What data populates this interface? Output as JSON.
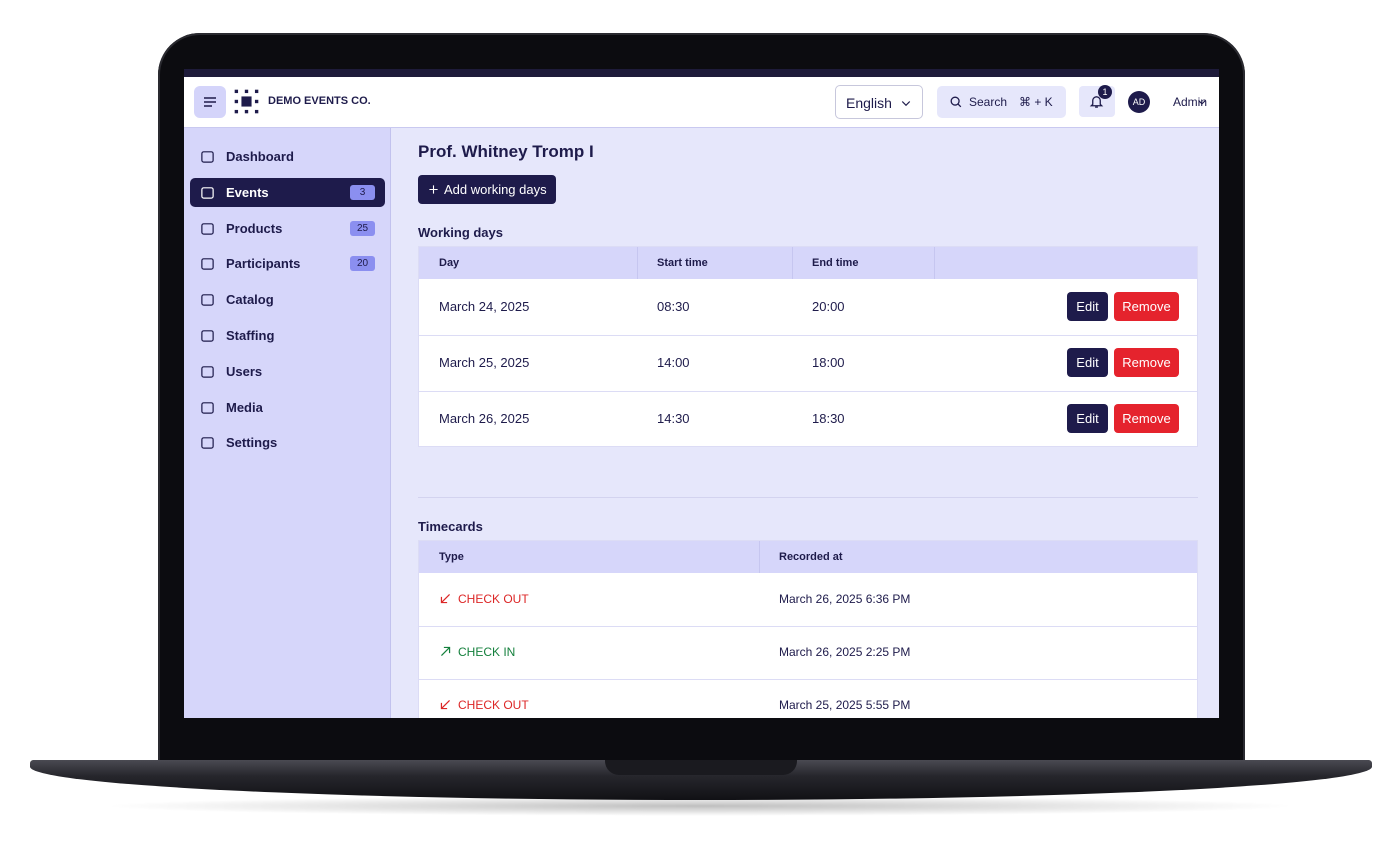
{
  "header": {
    "brand": "DEMO EVENTS CO.",
    "language": "English",
    "search": "Search",
    "shortcut": "⌘ + K",
    "notifications": "1",
    "avatar": "AD",
    "user": "Admin"
  },
  "sidebar": [
    {
      "label": "Dashboard"
    },
    {
      "label": "Events",
      "badge": "3",
      "active": true
    },
    {
      "label": "Products",
      "badge": "25"
    },
    {
      "label": "Participants",
      "badge": "20"
    },
    {
      "label": "Catalog"
    },
    {
      "label": "Staffing"
    },
    {
      "label": "Users"
    },
    {
      "label": "Media"
    },
    {
      "label": "Settings"
    }
  ],
  "page": {
    "title": "Prof. Whitney Tromp I",
    "add_button": "Add working days"
  },
  "working_days": {
    "title": "Working days",
    "columns": [
      "Day",
      "Start time",
      "End time"
    ],
    "edit": "Edit",
    "remove": "Remove",
    "rows": [
      [
        "March 24, 2025",
        "08:30",
        "20:00"
      ],
      [
        "March 25, 2025",
        "14:00",
        "18:00"
      ],
      [
        "March 26, 2025",
        "14:30",
        "18:30"
      ]
    ]
  },
  "timecards": {
    "title": "Timecards",
    "columns": [
      "Type",
      "Recorded at"
    ],
    "rows": [
      {
        "type": "CHECK OUT",
        "recorded_at": "March 26, 2025 6:36 PM",
        "color": "#dc2626",
        "arrow": "down-left"
      },
      {
        "type": "CHECK IN",
        "recorded_at": "March 26, 2025 2:25 PM",
        "color": "#15803d",
        "arrow": "up-right"
      },
      {
        "type": "CHECK OUT",
        "recorded_at": "March 25, 2025 5:55 PM",
        "color": "#dc2626",
        "arrow": "down-left"
      }
    ]
  }
}
